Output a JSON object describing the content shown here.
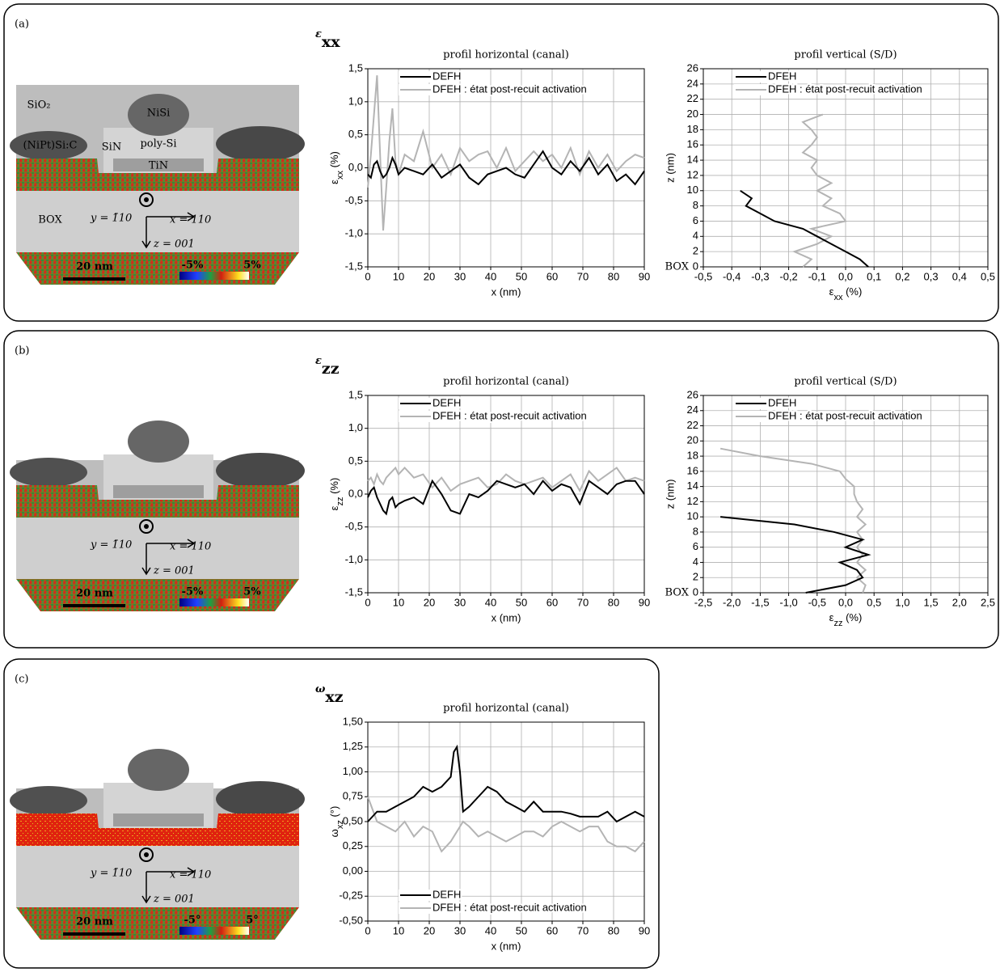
{
  "panels": [
    {
      "label": "(a)",
      "symbol": "ε",
      "sub": "xx",
      "image": {
        "labels": [
          "SiO₂",
          "NiSi",
          "(NiPt)Si:C",
          "SiN",
          "poly-Si",
          "TiN",
          "BOX"
        ],
        "y_axis": "y = 1̄10",
        "x_axis": "x = 110",
        "z_axis": "z = 001",
        "scale_bar": "20 nm",
        "color_min": "-5%",
        "color_max": "5%"
      }
    },
    {
      "label": "(b)",
      "symbol": "ε",
      "sub": "zz",
      "image": {
        "y_axis": "y = 1̄10",
        "x_axis": "x = 110",
        "z_axis": "z = 001",
        "scale_bar": "20 nm",
        "color_min": "-5%",
        "color_max": "5%"
      }
    },
    {
      "label": "(c)",
      "symbol": "ω",
      "sub": "xz",
      "image": {
        "y_axis": "y = 1̄10",
        "x_axis": "x = 110",
        "z_axis": "z = 001",
        "scale_bar": "20 nm",
        "color_min": "-5°",
        "color_max": "5°"
      }
    }
  ],
  "chart_data": [
    {
      "type": "line",
      "title": "profil horizontal (canal)",
      "xlabel": "x (nm)",
      "ylabel": {
        "symbol": "ε",
        "sub": "xx",
        "unit": " (%)"
      },
      "grid": true,
      "legend": "upper left",
      "x": [
        0,
        1,
        2,
        3,
        4,
        5,
        6,
        7,
        8,
        9,
        10,
        12,
        15,
        18,
        21,
        24,
        27,
        30,
        33,
        36,
        39,
        42,
        45,
        48,
        51,
        54,
        57,
        60,
        63,
        66,
        69,
        72,
        75,
        78,
        81,
        84,
        87,
        90
      ],
      "xlim": [
        0,
        90
      ],
      "xticks": [
        0,
        10,
        20,
        30,
        40,
        50,
        60,
        70,
        80,
        90
      ],
      "ylim": [
        -1.5,
        1.5
      ],
      "yticks": [
        {
          "value": -1.5,
          "label": "-1,5"
        },
        {
          "value": -1,
          "label": "-1,0"
        },
        {
          "value": -0.5,
          "label": "-0,5"
        },
        {
          "value": 0,
          "label": "0,0"
        },
        {
          "value": 0.5,
          "label": "0,5"
        },
        {
          "value": 1,
          "label": "1,0"
        },
        {
          "value": 1.5,
          "label": "1,5"
        }
      ],
      "series": [
        {
          "name": "DEFH",
          "color": "#000000",
          "values": [
            -0.1,
            -0.15,
            0.05,
            0.1,
            -0.05,
            -0.15,
            -0.1,
            0.0,
            0.15,
            0.05,
            -0.1,
            0.0,
            -0.05,
            -0.1,
            0.05,
            -0.15,
            -0.05,
            0.05,
            -0.15,
            -0.25,
            -0.1,
            -0.05,
            0.0,
            -0.1,
            -0.15,
            0.05,
            0.25,
            0.0,
            -0.1,
            0.1,
            -0.05,
            0.15,
            -0.1,
            0.05,
            -0.2,
            -0.1,
            -0.25,
            -0.05
          ]
        },
        {
          "name": "DFEH : état post-recuit activation",
          "color": "#b4b4b4",
          "values": [
            -0.3,
            0.2,
            0.8,
            1.4,
            0.2,
            -0.95,
            -0.3,
            0.4,
            0.9,
            0.1,
            -0.1,
            0.2,
            0.1,
            0.55,
            0.0,
            0.2,
            -0.1,
            0.3,
            0.1,
            0.2,
            0.25,
            0.0,
            0.3,
            -0.05,
            0.1,
            0.25,
            0.1,
            0.2,
            0.0,
            0.3,
            -0.1,
            0.25,
            0.0,
            0.2,
            -0.05,
            0.1,
            0.2,
            0.15
          ]
        }
      ]
    },
    {
      "type": "profile",
      "title": "profil vertical (S/D)",
      "ylabel": "z (nm)",
      "xlabel": {
        "symbol": "ε",
        "sub": "xx",
        "unit": " (%)"
      },
      "y_annotation": "BOX",
      "grid": true,
      "legend": "upper left",
      "xlim": [
        -0.5,
        0.5
      ],
      "xticks": [
        {
          "value": -0.5,
          "label": "-0,5"
        },
        {
          "value": -0.4,
          "label": "-0,4"
        },
        {
          "value": -0.3,
          "label": "-0,3"
        },
        {
          "value": -0.2,
          "label": "-0,2"
        },
        {
          "value": -0.1,
          "label": "-0,1"
        },
        {
          "value": 0,
          "label": "0,0"
        },
        {
          "value": 0.1,
          "label": "0,1"
        },
        {
          "value": 0.2,
          "label": "0,2"
        },
        {
          "value": 0.3,
          "label": "0,3"
        },
        {
          "value": 0.4,
          "label": "0,4"
        },
        {
          "value": 0.5,
          "label": "0,5"
        }
      ],
      "ylim": [
        0,
        26
      ],
      "yticks": [
        0,
        2,
        4,
        6,
        8,
        10,
        12,
        14,
        16,
        18,
        20,
        22,
        24,
        26
      ],
      "series": [
        {
          "name": "DFEH",
          "color": "#000000",
          "x": [
            0.08,
            0.05,
            0.0,
            -0.05,
            -0.1,
            -0.15,
            -0.25,
            -0.3,
            -0.35,
            -0.33,
            -0.37
          ],
          "values": [
            0,
            1,
            2,
            3,
            4,
            5,
            6,
            7,
            8,
            9,
            10
          ]
        },
        {
          "name": "DFEH : état post-recuit activation",
          "color": "#b4b4b4",
          "x": [
            -0.15,
            -0.12,
            -0.18,
            -0.1,
            -0.05,
            -0.12,
            0.0,
            -0.02,
            -0.08,
            -0.05,
            -0.1,
            -0.05,
            -0.1,
            -0.12,
            -0.1,
            -0.15,
            -0.12,
            -0.1,
            -0.12,
            -0.15,
            -0.08
          ],
          "values": [
            0,
            1,
            2,
            3,
            4,
            5,
            6,
            7,
            8,
            9,
            10,
            11,
            12,
            13,
            14,
            15,
            16,
            17,
            18,
            19,
            20
          ]
        }
      ]
    },
    {
      "type": "line",
      "title": "profil horizontal (canal)",
      "xlabel": "x (nm)",
      "ylabel": {
        "symbol": "ε",
        "sub": "zz",
        "unit": " (%)"
      },
      "grid": true,
      "legend": "upper left",
      "x": [
        0,
        1,
        2,
        3,
        4,
        5,
        6,
        7,
        8,
        9,
        10,
        12,
        15,
        18,
        21,
        24,
        27,
        30,
        33,
        36,
        39,
        42,
        45,
        48,
        51,
        54,
        57,
        60,
        63,
        66,
        69,
        72,
        75,
        78,
        81,
        84,
        87,
        90
      ],
      "xlim": [
        0,
        90
      ],
      "xticks": [
        0,
        10,
        20,
        30,
        40,
        50,
        60,
        70,
        80,
        90
      ],
      "ylim": [
        -1.5,
        1.5
      ],
      "yticks": [
        {
          "value": -1.5,
          "label": "-1,5"
        },
        {
          "value": -1,
          "label": "-1,0"
        },
        {
          "value": -0.5,
          "label": "-0,5"
        },
        {
          "value": 0,
          "label": "0,0"
        },
        {
          "value": 0.5,
          "label": "0,5"
        },
        {
          "value": 1,
          "label": "1,0"
        },
        {
          "value": 1.5,
          "label": "1,5"
        }
      ],
      "series": [
        {
          "name": "DEFH",
          "color": "#000000",
          "values": [
            -0.05,
            0.05,
            0.1,
            -0.05,
            -0.15,
            -0.25,
            -0.3,
            -0.1,
            -0.05,
            -0.2,
            -0.15,
            -0.1,
            -0.05,
            -0.15,
            0.2,
            0.0,
            -0.25,
            -0.3,
            0.0,
            -0.05,
            0.05,
            0.2,
            0.15,
            0.1,
            0.15,
            0.0,
            0.2,
            0.05,
            0.15,
            0.1,
            -0.15,
            0.2,
            0.1,
            0.0,
            0.15,
            0.2,
            0.2,
            0.0
          ]
        },
        {
          "name": "DFEH : état post-recuit activation",
          "color": "#b4b4b4",
          "values": [
            0.2,
            0.25,
            0.15,
            0.3,
            0.2,
            0.15,
            0.25,
            0.3,
            0.35,
            0.4,
            0.3,
            0.4,
            0.25,
            0.3,
            0.1,
            0.25,
            0.05,
            0.15,
            0.2,
            0.25,
            0.1,
            0.15,
            0.3,
            0.2,
            0.15,
            0.2,
            0.25,
            0.1,
            0.2,
            0.3,
            0.05,
            0.35,
            0.2,
            0.3,
            0.4,
            0.2,
            0.25,
            0.2
          ]
        }
      ]
    },
    {
      "type": "profile",
      "title": "profil vertical (S/D)",
      "ylabel": "z (nm)",
      "xlabel": {
        "symbol": "ε",
        "sub": "zz",
        "unit": " (%)"
      },
      "y_annotation": "BOX",
      "grid": true,
      "legend": "upper left",
      "xlim": [
        -2.5,
        2.5
      ],
      "xticks": [
        {
          "value": -2.5,
          "label": "-2,5"
        },
        {
          "value": -2,
          "label": "-2,0"
        },
        {
          "value": -1.5,
          "label": "-1,5"
        },
        {
          "value": -1,
          "label": "-1,0"
        },
        {
          "value": -0.5,
          "label": "-0,5"
        },
        {
          "value": 0,
          "label": "0,0"
        },
        {
          "value": 0.5,
          "label": "0,5"
        },
        {
          "value": 1,
          "label": "1,0"
        },
        {
          "value": 1.5,
          "label": "1,5"
        },
        {
          "value": 2,
          "label": "2,0"
        },
        {
          "value": 2.5,
          "label": "2,5"
        }
      ],
      "ylim": [
        0,
        26
      ],
      "yticks": [
        0,
        2,
        4,
        6,
        8,
        10,
        12,
        14,
        16,
        18,
        20,
        22,
        24,
        26
      ],
      "series": [
        {
          "name": "DFEH",
          "color": "#000000",
          "x": [
            -0.7,
            0.0,
            0.3,
            0.2,
            -0.1,
            0.4,
            0.0,
            0.3,
            -0.2,
            -0.9,
            -2.2
          ],
          "values": [
            0,
            1,
            2,
            3,
            4,
            5,
            6,
            7,
            8,
            9,
            10
          ]
        },
        {
          "name": "DFEH : état post-recuit activation",
          "color": "#b4b4b4",
          "x": [
            0.3,
            0.35,
            0.2,
            0.35,
            0.2,
            0.3,
            0.2,
            0.3,
            0.2,
            0.35,
            0.2,
            0.3,
            0.2,
            0.15,
            0.15,
            0.0,
            -0.1,
            -0.6,
            -1.5,
            -2.2
          ],
          "values": [
            0,
            1,
            2,
            3,
            4,
            5,
            6,
            7,
            8,
            9,
            10,
            11,
            12,
            13,
            14,
            15,
            16,
            17,
            18,
            19
          ]
        }
      ]
    },
    {
      "type": "line",
      "title": "profil horizontal (canal)",
      "xlabel": "x (nm)",
      "ylabel": {
        "symbol": "ω",
        "sub": "xz",
        "unit": " (°)"
      },
      "grid": true,
      "legend": "lower left",
      "x": [
        0,
        3,
        6,
        9,
        12,
        15,
        18,
        21,
        24,
        27,
        28,
        29,
        30,
        31,
        33,
        36,
        39,
        42,
        45,
        48,
        51,
        54,
        57,
        60,
        63,
        66,
        69,
        72,
        75,
        78,
        81,
        84,
        87,
        90
      ],
      "xlim": [
        0,
        90
      ],
      "xticks": [
        0,
        10,
        20,
        30,
        40,
        50,
        60,
        70,
        80,
        90
      ],
      "ylim": [
        -0.5,
        1.5
      ],
      "yticks": [
        {
          "value": -0.5,
          "label": "-0,50"
        },
        {
          "value": -0.25,
          "label": "-0,25"
        },
        {
          "value": 0,
          "label": "0,00"
        },
        {
          "value": 0.25,
          "label": "0,25"
        },
        {
          "value": 0.5,
          "label": "0,50"
        },
        {
          "value": 0.75,
          "label": "0,75"
        },
        {
          "value": 1,
          "label": "1,00"
        },
        {
          "value": 1.25,
          "label": "1,25"
        },
        {
          "value": 1.5,
          "label": "1,50"
        }
      ],
      "series": [
        {
          "name": "DEFH",
          "color": "#000000",
          "values": [
            0.5,
            0.6,
            0.6,
            0.65,
            0.7,
            0.75,
            0.85,
            0.8,
            0.85,
            0.95,
            1.2,
            1.25,
            1.0,
            0.6,
            0.65,
            0.75,
            0.85,
            0.8,
            0.7,
            0.65,
            0.6,
            0.7,
            0.6,
            0.6,
            0.6,
            0.58,
            0.55,
            0.55,
            0.55,
            0.6,
            0.5,
            0.55,
            0.6,
            0.55
          ]
        },
        {
          "name": "DFEH : état post-recuit activation",
          "color": "#b4b4b4",
          "values": [
            0.75,
            0.5,
            0.45,
            0.4,
            0.5,
            0.35,
            0.45,
            0.4,
            0.2,
            0.3,
            0.35,
            0.4,
            0.45,
            0.5,
            0.45,
            0.35,
            0.4,
            0.35,
            0.3,
            0.35,
            0.4,
            0.4,
            0.35,
            0.45,
            0.5,
            0.45,
            0.4,
            0.45,
            0.45,
            0.3,
            0.25,
            0.25,
            0.2,
            0.3
          ]
        }
      ]
    }
  ]
}
